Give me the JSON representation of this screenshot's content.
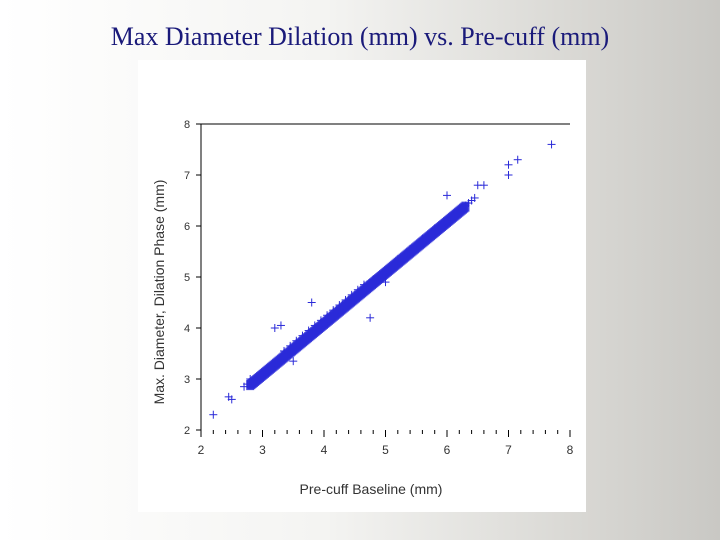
{
  "title": "Max Diameter Dilation (mm) vs. Pre-cuff (mm)",
  "chart_data": {
    "type": "scatter",
    "title": "Max Diameter Dilation (mm) vs. Pre-cuff (mm)",
    "xlabel": "Pre-cuff Baseline (mm)",
    "ylabel": "Max. Diameter, Dilation Phase (mm)",
    "xlim": [
      2,
      8
    ],
    "ylim": [
      2,
      8
    ],
    "xticks": [
      2,
      3,
      4,
      5,
      6,
      7,
      8
    ],
    "yticks": [
      2,
      3,
      4,
      5,
      6,
      7,
      8
    ],
    "grid": false,
    "marker": "+",
    "marker_color": "#2a2ad8",
    "series": [
      {
        "values_xy": [
          [
            2.2,
            2.3
          ],
          [
            2.45,
            2.65
          ],
          [
            2.5,
            2.6
          ],
          [
            2.7,
            2.85
          ],
          [
            2.75,
            2.9
          ],
          [
            2.8,
            3.0
          ],
          [
            3.0,
            3.05
          ],
          [
            3.1,
            3.15
          ],
          [
            3.2,
            3.25
          ],
          [
            3.3,
            3.35
          ],
          [
            3.4,
            3.5
          ],
          [
            3.5,
            3.6
          ],
          [
            3.6,
            3.7
          ],
          [
            3.7,
            3.8
          ],
          [
            3.8,
            3.9
          ],
          [
            3.9,
            4.0
          ],
          [
            4.0,
            4.1
          ],
          [
            4.1,
            4.2
          ],
          [
            4.2,
            4.3
          ],
          [
            4.3,
            4.4
          ],
          [
            4.4,
            4.5
          ],
          [
            4.5,
            4.6
          ],
          [
            4.6,
            4.7
          ],
          [
            4.7,
            4.8
          ],
          [
            4.8,
            4.9
          ],
          [
            4.9,
            5.0
          ],
          [
            5.0,
            5.1
          ],
          [
            5.1,
            5.2
          ],
          [
            5.2,
            5.3
          ],
          [
            5.3,
            5.4
          ],
          [
            5.4,
            5.5
          ],
          [
            5.5,
            5.6
          ],
          [
            5.6,
            5.7
          ],
          [
            5.7,
            5.8
          ],
          [
            5.8,
            5.85
          ],
          [
            5.9,
            6.0
          ],
          [
            6.0,
            6.1
          ],
          [
            6.1,
            6.2
          ],
          [
            6.2,
            6.3
          ],
          [
            6.3,
            6.4
          ],
          [
            6.4,
            6.5
          ],
          [
            6.5,
            6.8
          ],
          [
            6.6,
            6.8
          ],
          [
            7.0,
            7.0
          ],
          [
            7.0,
            7.2
          ],
          [
            7.15,
            7.3
          ],
          [
            7.7,
            7.6
          ],
          [
            3.2,
            4.0
          ],
          [
            3.3,
            4.05
          ],
          [
            3.8,
            4.5
          ],
          [
            3.5,
            3.35
          ],
          [
            4.75,
            4.2
          ],
          [
            5.0,
            4.9
          ],
          [
            6.0,
            6.6
          ],
          [
            3.35,
            3.55
          ],
          [
            3.45,
            3.65
          ],
          [
            3.55,
            3.75
          ],
          [
            3.65,
            3.85
          ],
          [
            3.75,
            3.95
          ],
          [
            3.85,
            4.05
          ],
          [
            3.95,
            4.15
          ],
          [
            4.05,
            4.25
          ],
          [
            4.15,
            4.35
          ],
          [
            4.25,
            4.45
          ],
          [
            4.35,
            4.55
          ],
          [
            4.45,
            4.65
          ],
          [
            4.55,
            4.75
          ],
          [
            4.65,
            4.85
          ],
          [
            4.85,
            4.95
          ],
          [
            4.95,
            5.05
          ],
          [
            5.05,
            5.15
          ],
          [
            5.15,
            5.25
          ],
          [
            5.25,
            5.35
          ],
          [
            5.35,
            5.45
          ],
          [
            5.45,
            5.55
          ],
          [
            5.55,
            5.65
          ],
          [
            5.65,
            5.75
          ],
          [
            5.75,
            5.85
          ],
          [
            5.85,
            5.9
          ],
          [
            5.95,
            6.05
          ],
          [
            6.05,
            6.15
          ],
          [
            6.15,
            6.25
          ],
          [
            6.25,
            6.35
          ],
          [
            6.35,
            6.45
          ],
          [
            6.45,
            6.55
          ],
          [
            2.9,
            3.0
          ],
          [
            3.05,
            3.1
          ],
          [
            3.15,
            3.2
          ],
          [
            3.25,
            3.3
          ],
          [
            4.1,
            4.25
          ],
          [
            4.2,
            4.35
          ],
          [
            4.3,
            4.45
          ],
          [
            4.4,
            4.55
          ],
          [
            4.5,
            4.65
          ],
          [
            4.6,
            4.75
          ],
          [
            4.7,
            4.85
          ],
          [
            4.8,
            4.95
          ],
          [
            5.2,
            5.35
          ],
          [
            5.4,
            5.55
          ],
          [
            5.6,
            5.75
          ],
          [
            5.8,
            5.95
          ]
        ]
      }
    ]
  }
}
